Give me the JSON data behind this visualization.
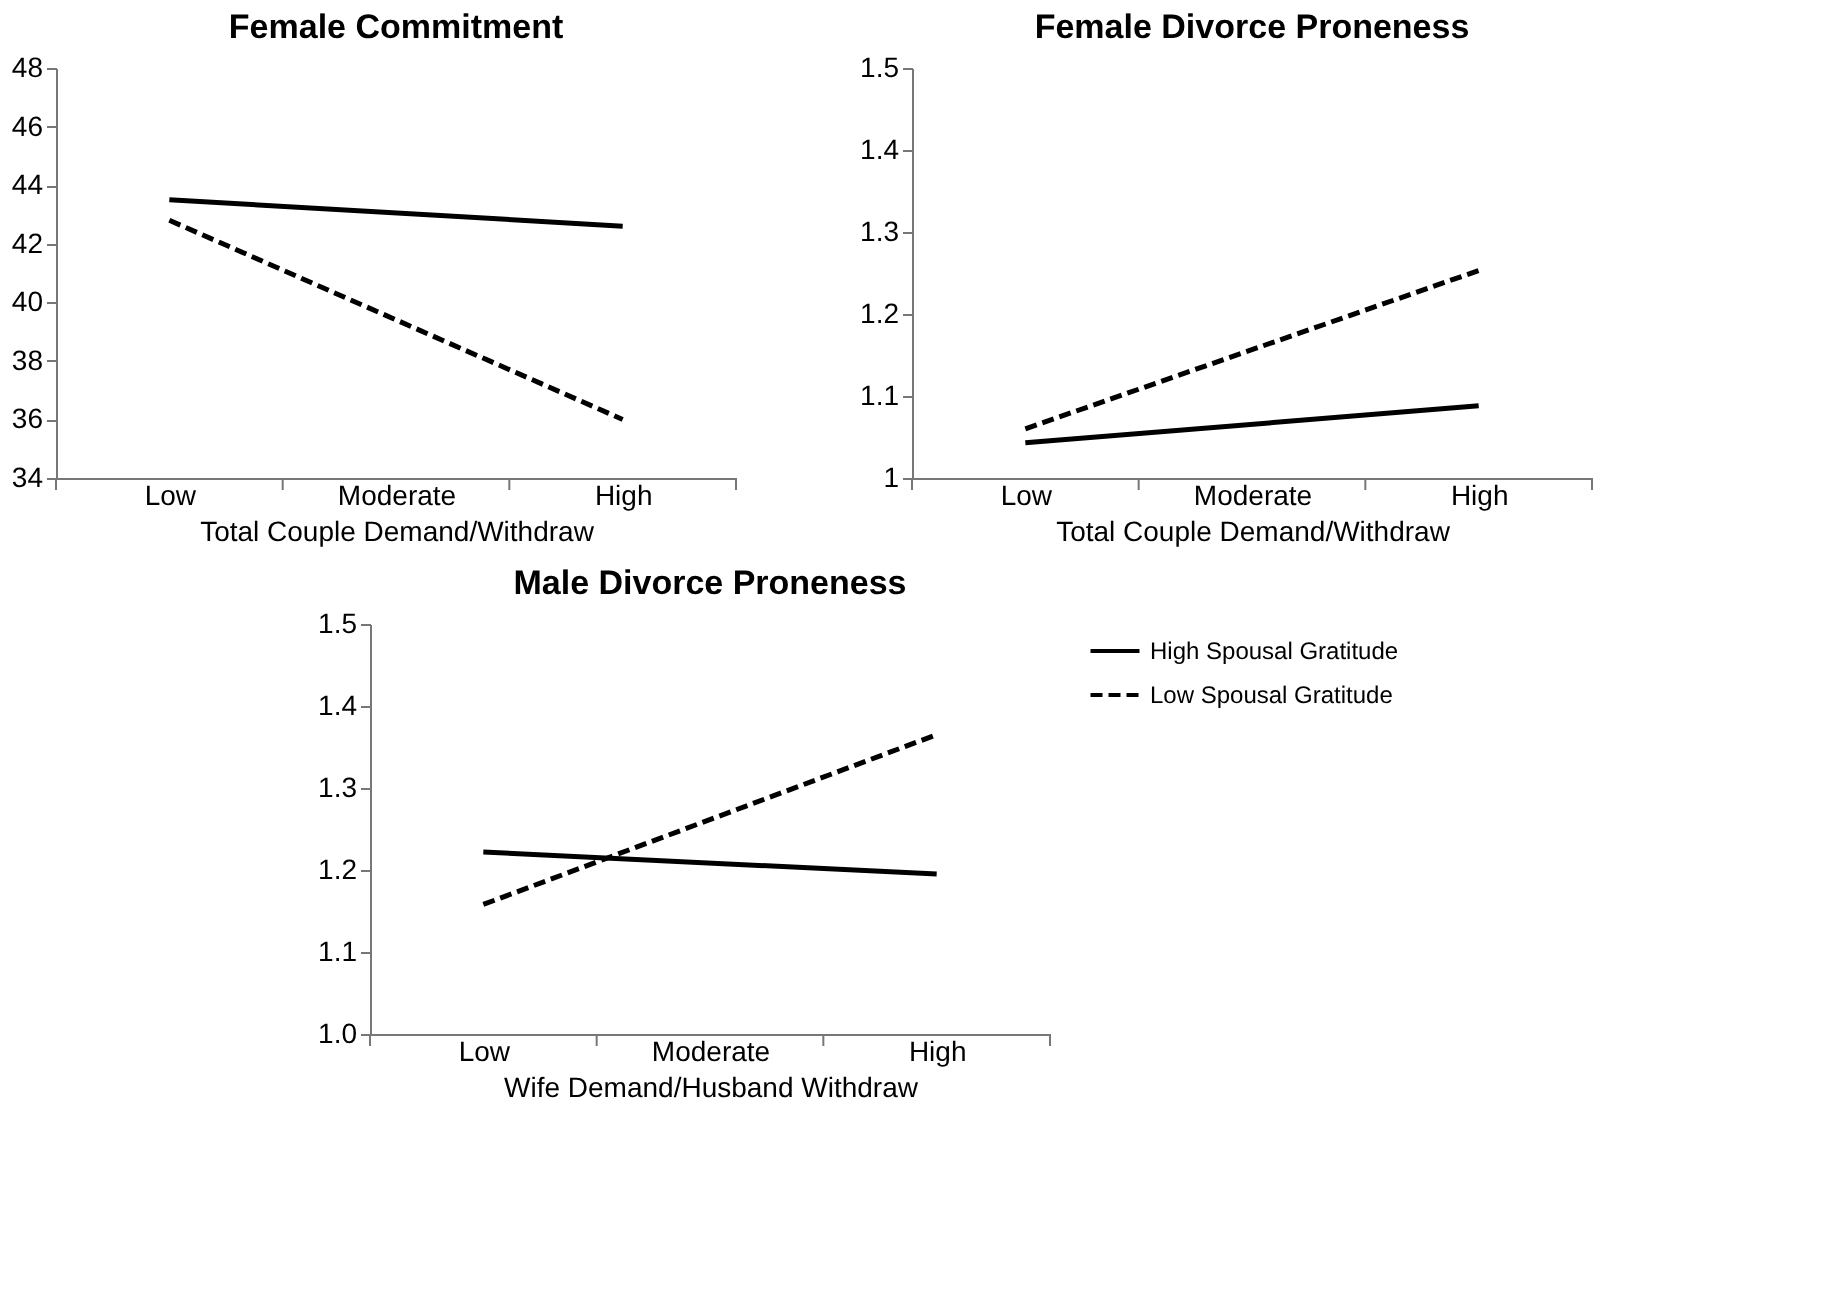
{
  "chart_data": [
    {
      "type": "line",
      "title": "Female Commitment",
      "xlabel": "Total Couple Demand/Withdraw",
      "categories": [
        "Low",
        "Moderate",
        "High"
      ],
      "ylim": [
        34,
        48
      ],
      "yticks": [
        34,
        36,
        38,
        40,
        42,
        44,
        46,
        48
      ],
      "grid": false,
      "marker": "none",
      "series": [
        {
          "color": "#000000",
          "line_style": "solid",
          "values": [
            43.5,
            null,
            42.6
          ]
        },
        {
          "color": "#000000",
          "line_style": "dashed",
          "values": [
            42.8,
            null,
            36.0
          ]
        }
      ]
    },
    {
      "type": "line",
      "title": "Female Divorce Proneness",
      "xlabel": "Total Couple Demand/Withdraw",
      "categories": [
        "Low",
        "Moderate",
        "High"
      ],
      "ylim": [
        1,
        1.5
      ],
      "yticks": [
        1,
        1.1,
        1.2,
        1.3,
        1.4,
        1.5
      ],
      "grid": false,
      "marker": "none",
      "series": [
        {
          "color": "#000000",
          "line_style": "solid",
          "values": [
            1.043,
            null,
            1.088
          ]
        },
        {
          "color": "#000000",
          "line_style": "dashed",
          "values": [
            1.06,
            null,
            1.253
          ]
        }
      ]
    },
    {
      "type": "line",
      "title": "Male Divorce Proneness",
      "xlabel": "Wife Demand/Husband Withdraw",
      "categories": [
        "Low",
        "Moderate",
        "High"
      ],
      "ylim": [
        1.0,
        1.5
      ],
      "yticks": [
        {
          "value": 1.0,
          "label": "1.0"
        },
        1.1,
        1.2,
        1.3,
        1.4,
        1.5
      ],
      "grid": false,
      "marker": "none",
      "legend": "right",
      "series": [
        {
          "name": "High Spousal Gratitude",
          "color": "#000000",
          "line_style": "solid",
          "values": [
            1.222,
            null,
            1.195
          ]
        },
        {
          "name": "Low Spousal Gratitude",
          "color": "#000000",
          "line_style": "dashed",
          "values": [
            1.158,
            null,
            1.365
          ]
        }
      ]
    }
  ]
}
